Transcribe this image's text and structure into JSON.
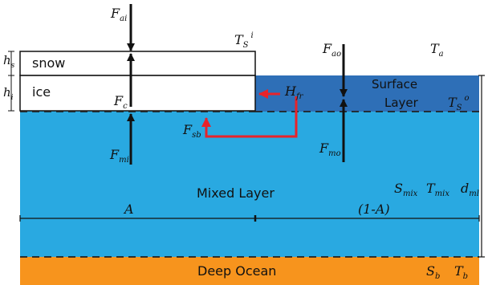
{
  "colors": {
    "mixed_layer": "#29a9e1",
    "surface_layer": "#2e6fb7",
    "deep_ocean": "#f7941d",
    "ice_box": "#ffffff",
    "arrow_black": "#111111",
    "arrow_red": "#e8232a",
    "dashed": "#222222"
  },
  "labels": {
    "snow": "snow",
    "ice": "ice",
    "surface_layer_line1": "Surface",
    "surface_layer_line2": "Layer",
    "mixed_layer": "Mixed Layer",
    "deep_ocean": "Deep Ocean",
    "A": "A",
    "one_minus_A": "(1-A)"
  },
  "symbols": {
    "F_ai": {
      "main": "F",
      "sub": "ai"
    },
    "F_ao": {
      "main": "F",
      "sub": "ao"
    },
    "F_c": {
      "main": "F",
      "sub": "c"
    },
    "F_mi": {
      "main": "F",
      "sub": "mi"
    },
    "F_mo": {
      "main": "F",
      "sub": "mo"
    },
    "F_sb": {
      "main": "F",
      "sub": "sb"
    },
    "H_fr": {
      "main": "H",
      "sub": "fr"
    },
    "T_S_i": {
      "main": "T",
      "sub": "S",
      "sup": "i"
    },
    "T_S_o": {
      "main": "T",
      "sub": "S",
      "sup": "o"
    },
    "T_a": {
      "main": "T",
      "sub": "a"
    },
    "h_s": {
      "main": "h",
      "sub": "s"
    },
    "h_i": {
      "main": "h",
      "sub": "i"
    },
    "S_mix": {
      "main": "S",
      "sub": "mix"
    },
    "T_mix": {
      "main": "T",
      "sub": "mix"
    },
    "d_ml": {
      "main": "d",
      "sub": "ml"
    },
    "S_b": {
      "main": "S",
      "sub": "b"
    },
    "T_b": {
      "main": "T",
      "sub": "b"
    }
  }
}
